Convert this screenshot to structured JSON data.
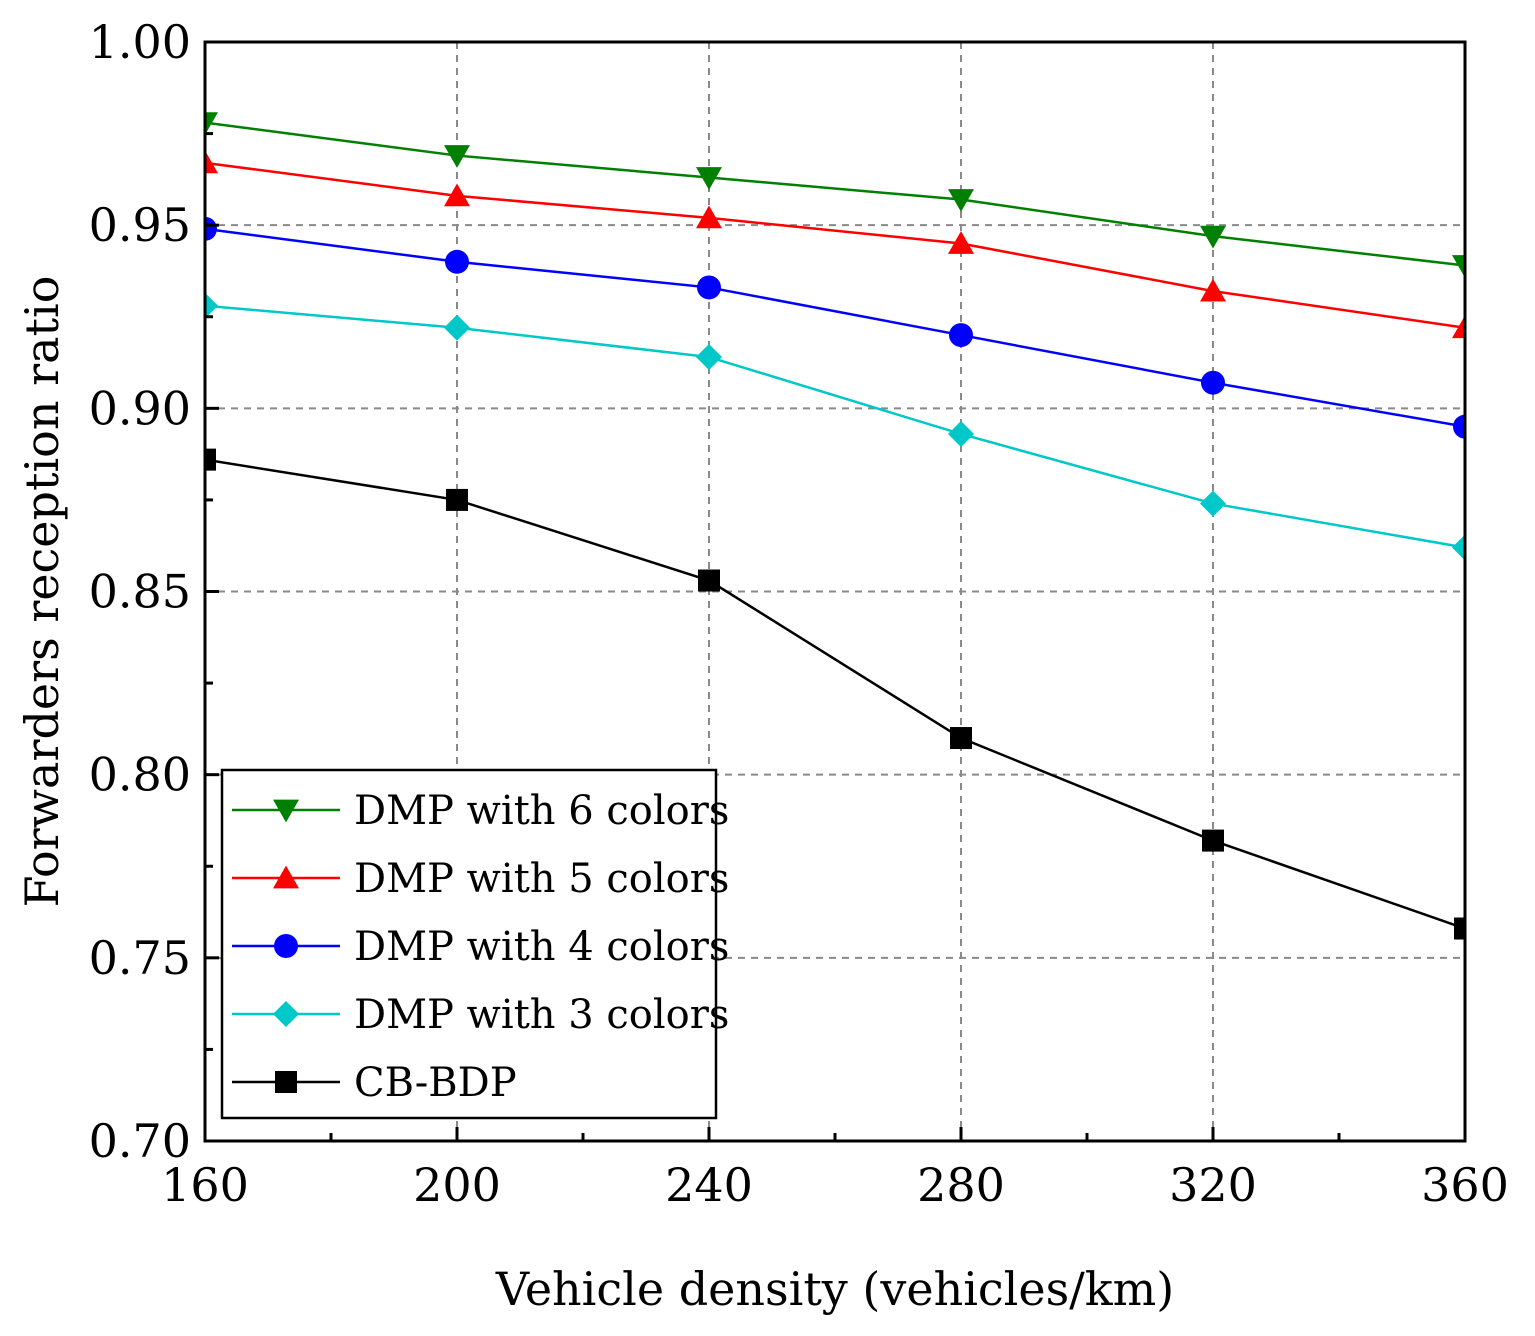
{
  "chart_data": {
    "type": "line",
    "title": "",
    "xlabel": "Vehicle density (vehicles/km)",
    "ylabel": "Forwarders reception ratio",
    "x": [
      160,
      200,
      240,
      280,
      320,
      360
    ],
    "xlim": [
      160,
      360
    ],
    "ylim": [
      0.7,
      1.0
    ],
    "xticks": [
      160,
      200,
      240,
      280,
      320,
      360
    ],
    "xtick_labels": [
      "160",
      "200",
      "240",
      "280",
      "320",
      "360"
    ],
    "yticks": [
      0.7,
      0.75,
      0.8,
      0.85,
      0.9,
      0.95,
      1.0
    ],
    "ytick_labels": [
      "0.70",
      "0.75",
      "0.80",
      "0.85",
      "0.90",
      "0.95",
      "1.00"
    ],
    "grid": true,
    "legend_position": "lower-left",
    "series": [
      {
        "name": "DMP with 6 colors",
        "color": "#008000",
        "marker": "triangle-down",
        "values": [
          0.978,
          0.969,
          0.963,
          0.957,
          0.947,
          0.939
        ]
      },
      {
        "name": "DMP with 5 colors",
        "color": "#ff0000",
        "marker": "triangle-up",
        "values": [
          0.967,
          0.958,
          0.952,
          0.945,
          0.932,
          0.922
        ]
      },
      {
        "name": "DMP with 4 colors",
        "color": "#0000ff",
        "marker": "circle",
        "values": [
          0.949,
          0.94,
          0.933,
          0.92,
          0.907,
          0.895
        ]
      },
      {
        "name": "DMP with 3 colors",
        "color": "#00c8c8",
        "marker": "diamond",
        "values": [
          0.928,
          0.922,
          0.914,
          0.893,
          0.874,
          0.862
        ]
      },
      {
        "name": "CB-BDP",
        "color": "#000000",
        "marker": "square",
        "values": [
          0.886,
          0.875,
          0.853,
          0.81,
          0.782,
          0.758
        ]
      }
    ]
  }
}
